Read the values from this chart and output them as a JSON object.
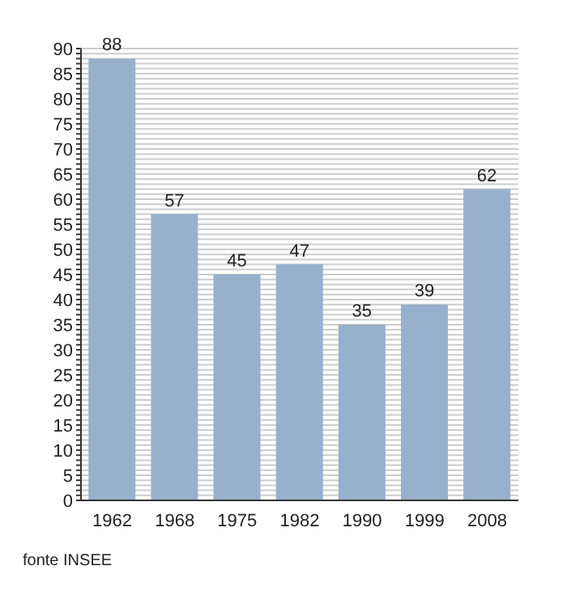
{
  "chart_data": {
    "type": "bar",
    "categories": [
      "1962",
      "1968",
      "1975",
      "1982",
      "1990",
      "1999",
      "2008"
    ],
    "values": [
      88,
      57,
      45,
      47,
      35,
      39,
      62
    ],
    "color": "#97b1cc",
    "data_labels": true,
    "grid": "y",
    "ylim": [
      0,
      90
    ],
    "yticks": [
      0,
      {
        "value": 1,
        "label": null
      },
      {
        "value": 2,
        "label": null
      },
      {
        "value": 3,
        "label": null
      },
      {
        "value": 4,
        "label": null
      },
      5,
      {
        "value": 6,
        "label": null
      },
      {
        "value": 7,
        "label": null
      },
      {
        "value": 8,
        "label": null
      },
      {
        "value": 9,
        "label": null
      },
      10,
      {
        "value": 11,
        "label": null
      },
      {
        "value": 12,
        "label": null
      },
      {
        "value": 13,
        "label": null
      },
      {
        "value": 14,
        "label": null
      },
      15,
      {
        "value": 16,
        "label": null
      },
      {
        "value": 17,
        "label": null
      },
      {
        "value": 18,
        "label": null
      },
      {
        "value": 19,
        "label": null
      },
      20,
      {
        "value": 21,
        "label": null
      },
      {
        "value": 22,
        "label": null
      },
      {
        "value": 23,
        "label": null
      },
      {
        "value": 24,
        "label": null
      },
      25,
      {
        "value": 26,
        "label": null
      },
      {
        "value": 27,
        "label": null
      },
      {
        "value": 28,
        "label": null
      },
      {
        "value": 29,
        "label": null
      },
      30,
      {
        "value": 31,
        "label": null
      },
      {
        "value": 32,
        "label": null
      },
      {
        "value": 33,
        "label": null
      },
      {
        "value": 34,
        "label": null
      },
      35,
      {
        "value": 36,
        "label": null
      },
      {
        "value": 37,
        "label": null
      },
      {
        "value": 38,
        "label": null
      },
      {
        "value": 39,
        "label": null
      },
      40,
      {
        "value": 41,
        "label": null
      },
      {
        "value": 42,
        "label": null
      },
      {
        "value": 43,
        "label": null
      },
      {
        "value": 44,
        "label": null
      },
      45,
      {
        "value": 46,
        "label": null
      },
      {
        "value": 47,
        "label": null
      },
      {
        "value": 48,
        "label": null
      },
      {
        "value": 49,
        "label": null
      },
      50,
      {
        "value": 51,
        "label": null
      },
      {
        "value": 52,
        "label": null
      },
      {
        "value": 53,
        "label": null
      },
      {
        "value": 54,
        "label": null
      },
      55,
      {
        "value": 56,
        "label": null
      },
      {
        "value": 57,
        "label": null
      },
      {
        "value": 58,
        "label": null
      },
      {
        "value": 59,
        "label": null
      },
      60,
      {
        "value": 61,
        "label": null
      },
      {
        "value": 62,
        "label": null
      },
      {
        "value": 63,
        "label": null
      },
      {
        "value": 64,
        "label": null
      },
      65,
      {
        "value": 66,
        "label": null
      },
      {
        "value": 67,
        "label": null
      },
      {
        "value": 68,
        "label": null
      },
      {
        "value": 69,
        "label": null
      },
      70,
      {
        "value": 71,
        "label": null
      },
      {
        "value": 72,
        "label": null
      },
      {
        "value": 73,
        "label": null
      },
      {
        "value": 74,
        "label": null
      },
      75,
      {
        "value": 76,
        "label": null
      },
      {
        "value": 77,
        "label": null
      },
      {
        "value": 78,
        "label": null
      },
      {
        "value": 79,
        "label": null
      },
      80,
      {
        "value": 81,
        "label": null
      },
      {
        "value": 82,
        "label": null
      },
      {
        "value": 83,
        "label": null
      },
      {
        "value": 84,
        "label": null
      },
      85,
      {
        "value": 86,
        "label": null
      },
      {
        "value": 87,
        "label": null
      },
      {
        "value": 88,
        "label": null
      },
      {
        "value": 89,
        "label": null
      },
      90
    ],
    "annotations": [
      "fonte INSEE"
    ]
  }
}
